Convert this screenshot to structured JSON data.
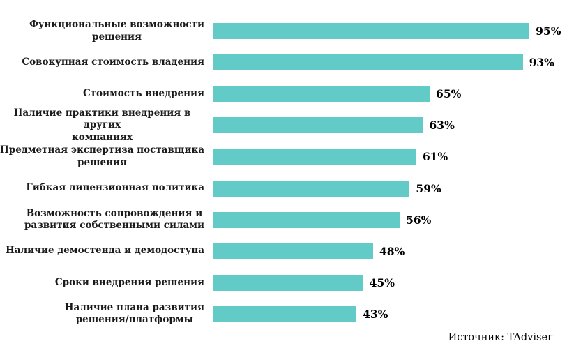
{
  "chart_data": {
    "type": "bar",
    "orientation": "horizontal",
    "categories": [
      "Функциональные возможности\nрешения",
      "Совокупная стоимость владения",
      "Стоимость внедрения",
      "Наличие практики внедрения в других\nкомпаниях",
      "Предметная экспертиза поставщика\nрешения",
      "Гибкая лицензионная политика",
      "Возможность сопровождения и\nразвития собственными силами",
      "Наличие демостенда и демодоступа",
      "Сроки внедрения решения",
      "Наличие плана развития\nрешения/платформы"
    ],
    "values": [
      95,
      93,
      65,
      63,
      61,
      59,
      56,
      48,
      45,
      43
    ],
    "value_suffix": "%",
    "xlim": [
      0,
      100
    ],
    "grid": false,
    "legend": false,
    "title": "",
    "xlabel": "",
    "ylabel": "",
    "bar_color": "#62CAC7",
    "axis_color": "#000000",
    "source_note": "Источник: TAdviser"
  }
}
